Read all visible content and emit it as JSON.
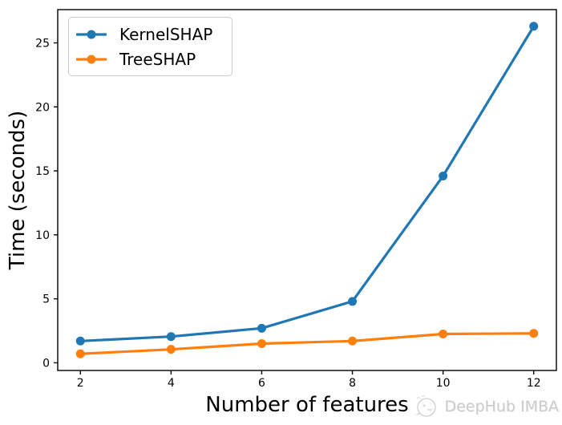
{
  "figure": {
    "background": "#ffffff"
  },
  "chart_data": {
    "type": "line",
    "title": "",
    "xlabel": "Number of features",
    "ylabel": "Time (seconds)",
    "x": [
      2,
      4,
      6,
      8,
      10,
      12
    ],
    "series": [
      {
        "name": "KernelSHAP",
        "color": "#1f77b4",
        "marker": "circle",
        "values": [
          1.7,
          2.05,
          2.7,
          4.8,
          14.6,
          26.3
        ]
      },
      {
        "name": "TreeSHAP",
        "color": "#ff7f0e",
        "marker": "circle",
        "values": [
          0.7,
          1.05,
          1.5,
          1.7,
          2.25,
          2.3
        ]
      }
    ],
    "xticks": [
      2,
      4,
      6,
      8,
      10,
      12
    ],
    "yticks": [
      0,
      5,
      10,
      15,
      20,
      25
    ],
    "xlim": [
      1.5,
      12.5
    ],
    "ylim": [
      -0.6,
      27.6
    ],
    "grid": false,
    "legend_position": "upper-left",
    "spine_color": "#000000",
    "line_width": 3.2,
    "marker_radius": 5.5
  },
  "watermark": {
    "text": "DeepHub IMBA",
    "color": "#cbcbcb"
  }
}
